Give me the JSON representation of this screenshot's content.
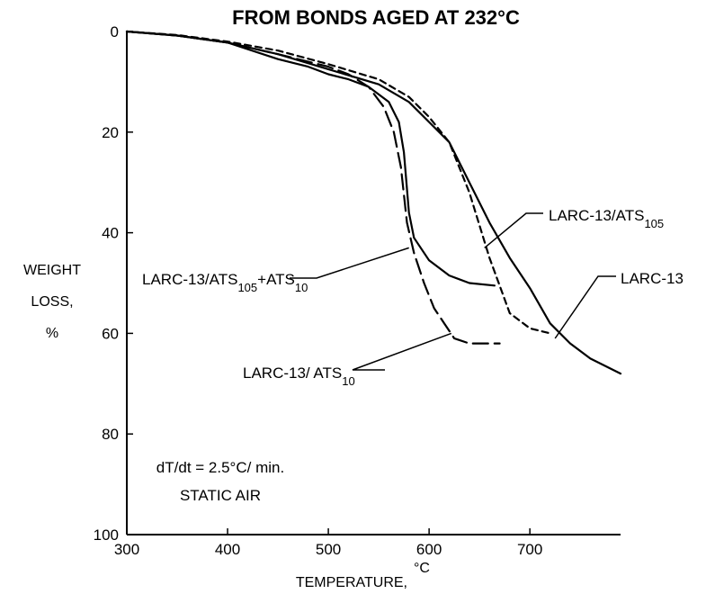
{
  "chart_data": {
    "type": "line",
    "title": "FROM BONDS AGED AT 232°C",
    "xlabel": {
      "main": "TEMPERATURE,",
      "unit": "°C"
    },
    "ylabel": [
      "WEIGHT",
      "LOSS,",
      "%"
    ],
    "xlim": [
      300,
      790
    ],
    "ylim": [
      0,
      100
    ],
    "y_inverted": true,
    "xticks": [
      300,
      400,
      500,
      600,
      700
    ],
    "yticks": [
      0,
      20,
      40,
      60,
      80,
      100
    ],
    "grid": false,
    "annotation": [
      "dT/dt = 2.5°C/ min.",
      "STATIC AIR"
    ],
    "series": [
      {
        "id": "larc13",
        "label": {
          "main": "LARC-13",
          "sub": ""
        },
        "style": "solid",
        "label_anchor": [
          725,
          61
        ],
        "points": [
          [
            300,
            0
          ],
          [
            350,
            0.8
          ],
          [
            400,
            2.2
          ],
          [
            450,
            4.5
          ],
          [
            500,
            7.5
          ],
          [
            550,
            10.5
          ],
          [
            580,
            14
          ],
          [
            600,
            18
          ],
          [
            620,
            22
          ],
          [
            640,
            30
          ],
          [
            660,
            38
          ],
          [
            680,
            45
          ],
          [
            700,
            51
          ],
          [
            720,
            58
          ],
          [
            740,
            62
          ],
          [
            760,
            65
          ],
          [
            790,
            68
          ]
        ]
      },
      {
        "id": "larc13_ats105",
        "label": {
          "main": "LARC-13/ATS",
          "sub": "105"
        },
        "style": "short-dash",
        "label_anchor": [
          655,
          43
        ],
        "points": [
          [
            300,
            0
          ],
          [
            350,
            0.7
          ],
          [
            400,
            2.0
          ],
          [
            450,
            3.8
          ],
          [
            500,
            6.5
          ],
          [
            550,
            9.5
          ],
          [
            580,
            13
          ],
          [
            600,
            17
          ],
          [
            620,
            22
          ],
          [
            640,
            32
          ],
          [
            660,
            45
          ],
          [
            680,
            56
          ],
          [
            700,
            59
          ],
          [
            720,
            60
          ]
        ]
      },
      {
        "id": "larc13_ats105_ats10",
        "label": {
          "main": "LARC-13/ATS",
          "sub": "105",
          "plus": "+ATS",
          "sub2": "10"
        },
        "style": "solid",
        "label_anchor": [
          580,
          43
        ],
        "points": [
          [
            300,
            0
          ],
          [
            350,
            0.8
          ],
          [
            400,
            2.2
          ],
          [
            450,
            5.5
          ],
          [
            480,
            7.0
          ],
          [
            500,
            8.5
          ],
          [
            520,
            9.5
          ],
          [
            540,
            11
          ],
          [
            560,
            14
          ],
          [
            570,
            18
          ],
          [
            575,
            24
          ],
          [
            580,
            36
          ],
          [
            585,
            41
          ],
          [
            600,
            45.5
          ],
          [
            620,
            48.5
          ],
          [
            640,
            50
          ],
          [
            665,
            50.5
          ]
        ]
      },
      {
        "id": "larc13_ats10",
        "label": {
          "main": "LARC-13/ ATS",
          "sub": "10"
        },
        "style": "long-dash",
        "label_anchor": [
          622,
          60
        ],
        "points": [
          [
            300,
            0
          ],
          [
            350,
            0.8
          ],
          [
            400,
            2.2
          ],
          [
            450,
            4.5
          ],
          [
            500,
            7.0
          ],
          [
            520,
            8.5
          ],
          [
            540,
            11
          ],
          [
            555,
            15
          ],
          [
            565,
            20
          ],
          [
            572,
            27
          ],
          [
            578,
            38
          ],
          [
            585,
            44
          ],
          [
            595,
            50
          ],
          [
            605,
            55
          ],
          [
            615,
            58
          ],
          [
            625,
            61
          ],
          [
            640,
            62
          ],
          [
            670,
            62
          ]
        ]
      }
    ]
  }
}
